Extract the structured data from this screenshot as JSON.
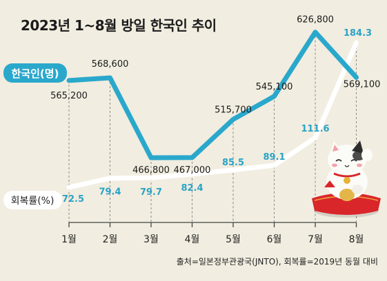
{
  "title": "2023년 1~8월 방일 한국인 추이",
  "source": "출처=일본정부관광국(JNTO), 회복률=2019년 동월 대비",
  "colors": {
    "background": "#f1ede0",
    "visitors_line": "#2aa8cc",
    "recovery_line": "#ffffff",
    "recovery_label": "#2aa3c6"
  },
  "chart_data": {
    "type": "line",
    "categories": [
      "1월",
      "2월",
      "3월",
      "4월",
      "5월",
      "6월",
      "7월",
      "8월"
    ],
    "series": [
      {
        "name": "한국인(명)",
        "values": [
          565200,
          568600,
          466800,
          467000,
          515700,
          545100,
          626800,
          569100
        ],
        "labels": [
          "565,200",
          "568,600",
          "466,800",
          "467,000",
          "515,700",
          "545,100",
          "626,800",
          "569,100"
        ]
      },
      {
        "name": "회복률(%)",
        "values": [
          72.5,
          79.4,
          79.7,
          82.4,
          85.5,
          89.1,
          111.6,
          184.3
        ],
        "labels": [
          "72.5",
          "79.4",
          "79.7",
          "82.4",
          "85.5",
          "89.1",
          "111.6",
          "184.3"
        ]
      }
    ],
    "grid": "vertical dashed guides",
    "legend": "left, inline with lines"
  }
}
